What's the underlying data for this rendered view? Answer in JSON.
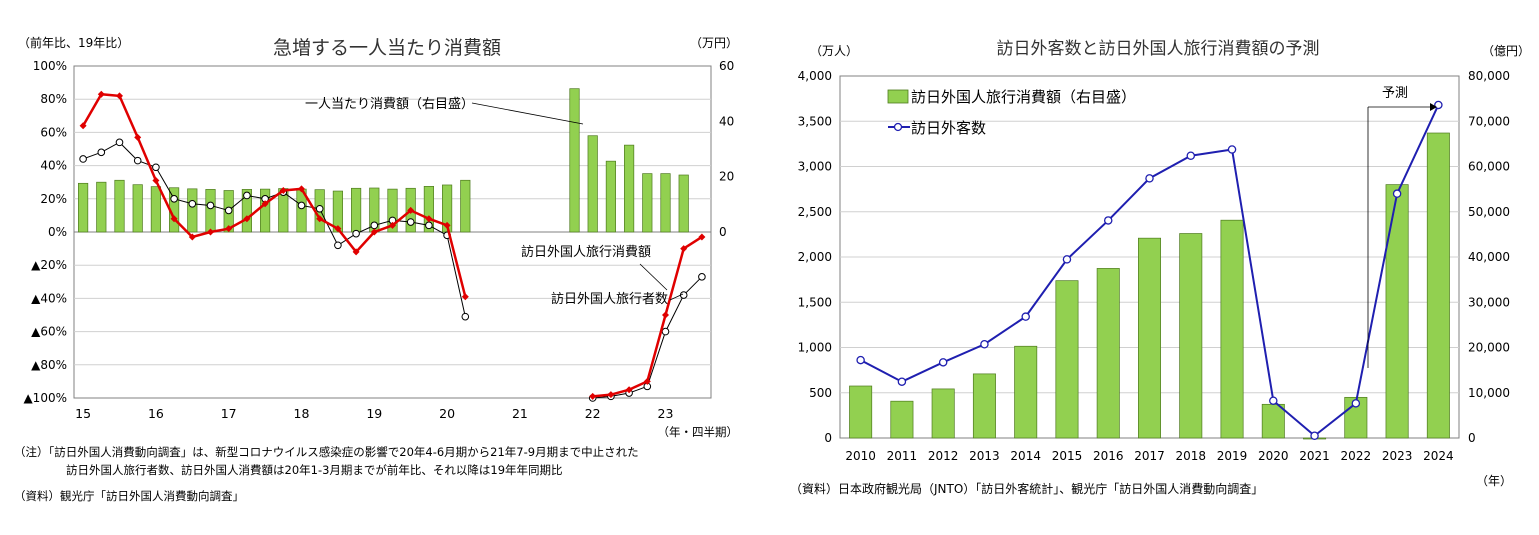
{
  "left_chart": {
    "title": "急増する一人当たり消費額",
    "left_axis_unit": "（前年比、19年比）",
    "right_axis_unit": "（万円）",
    "x_unit": "（年・四半期）",
    "left_ticks": [
      "100%",
      "80%",
      "60%",
      "40%",
      "20%",
      "0%",
      "▲20%",
      "▲40%",
      "▲60%",
      "▲80%",
      "▲100%"
    ],
    "right_ticks": [
      "60",
      "40",
      "20",
      "0"
    ],
    "x_ticks": [
      "15",
      "16",
      "17",
      "18",
      "19",
      "20",
      "21",
      "22",
      "23"
    ],
    "annotations": {
      "per_capita": "一人当たり消費額（右目盛）",
      "spending": "訪日外国人旅行消費額",
      "visitors": "訪日外国人旅行者数"
    },
    "note_lines": [
      "（注）「訪日外国人消費動向調査」は、新型コロナウイルス感染症の影響で20年4-6月期から21年7-9月期まで中止された",
      "訪日外国人旅行者数、訪日外国人消費額は20年1-3月期までが前年比、それ以降は19年年同期比"
    ],
    "source": "（資料）観光庁「訪日外国人消費動向調査」"
  },
  "right_chart": {
    "title": "訪日外客数と訪日外国人旅行消費額の予測",
    "left_axis_unit": "（万人）",
    "right_axis_unit": "（億円）",
    "x_unit": "（年）",
    "left_ticks": [
      "4,000",
      "3,500",
      "3,000",
      "2,500",
      "2,000",
      "1,500",
      "1,000",
      "500",
      "0"
    ],
    "right_ticks": [
      "80,000",
      "70,000",
      "60,000",
      "50,000",
      "40,000",
      "30,000",
      "20,000",
      "10,000",
      "0"
    ],
    "legend": {
      "bars": "訪日外国人旅行消費額（右目盛）",
      "line": "訪日外客数"
    },
    "forecast_label": "予測",
    "source": "（資料）日本政府観光局（JNTO）「訪日外客統計」、観光庁「訪日外国人消費動向調査」"
  },
  "colors": {
    "bar_fill": "#92D050",
    "bar_edge": "#4E7A1E",
    "spending_line": "#E00000",
    "visitors_line": "#000000",
    "right_line": "#1F1FB0",
    "grid": "#D0D0D0"
  },
  "chart_data": [
    {
      "type": "bar+line",
      "title": "急増する一人当たり消費額",
      "x_labels": [
        "15Q1",
        "15Q2",
        "15Q3",
        "15Q4",
        "16Q1",
        "16Q2",
        "16Q3",
        "16Q4",
        "17Q1",
        "17Q2",
        "17Q3",
        "17Q4",
        "18Q1",
        "18Q2",
        "18Q3",
        "18Q4",
        "19Q1",
        "19Q2",
        "19Q3",
        "19Q4",
        "20Q1",
        "20Q2",
        "20Q3",
        "20Q4",
        "21Q1",
        "21Q2",
        "21Q3",
        "21Q4",
        "22Q1",
        "22Q2",
        "22Q3",
        "22Q4",
        "23Q1",
        "23Q2",
        "23Q3"
      ],
      "ylim_left": [
        -100,
        100
      ],
      "ylim_right": [
        -60,
        60
      ],
      "grid": true,
      "series": [
        {
          "name": "一人当たり消費額（右目盛）",
          "kind": "bar",
          "axis": "right",
          "values": [
            17.6,
            18.0,
            18.7,
            17.1,
            16.4,
            16.0,
            15.6,
            15.4,
            15.0,
            15.4,
            15.5,
            15.7,
            15.5,
            15.3,
            14.8,
            15.8,
            15.9,
            15.5,
            15.8,
            16.5,
            17.0,
            18.7,
            null,
            null,
            null,
            null,
            null,
            51.8,
            34.8,
            25.6,
            31.4,
            21.1,
            21.1,
            20.6
          ]
        },
        {
          "name": "訪日外国人旅行消費額",
          "kind": "line",
          "axis": "left",
          "values": [
            64,
            83,
            82,
            57,
            31,
            8,
            -3,
            0,
            2,
            8,
            17,
            25,
            26,
            8,
            2,
            -12,
            0,
            4,
            13,
            8,
            4,
            -39,
            null,
            null,
            null,
            null,
            null,
            null,
            -99,
            -98,
            -95,
            -90,
            -50,
            -10,
            -3
          ]
        },
        {
          "name": "訪日外国人旅行者数",
          "kind": "line",
          "axis": "left",
          "values": [
            44,
            48,
            54,
            43,
            39,
            20,
            17,
            16,
            13,
            22,
            20,
            24,
            16,
            14,
            -8,
            -1,
            4,
            7,
            6,
            4,
            -2,
            -51,
            null,
            null,
            null,
            null,
            null,
            null,
            -100,
            -99,
            -97,
            -93,
            -60,
            -38,
            -27
          ]
        }
      ]
    },
    {
      "type": "bar+line",
      "title": "訪日外客数と訪日外国人旅行消費額の予測",
      "categories": [
        "2010",
        "2011",
        "2012",
        "2013",
        "2014",
        "2015",
        "2016",
        "2017",
        "2018",
        "2019",
        "2020",
        "2021",
        "2022",
        "2023",
        "2024"
      ],
      "ylim_left": [
        0,
        4000
      ],
      "ylim_right": [
        0,
        80000
      ],
      "grid": true,
      "legend_position": "top-left",
      "series": [
        {
          "name": "訪日外国人旅行消費額（右目盛）",
          "kind": "bar",
          "axis": "right",
          "values": [
            11490,
            8135,
            10846,
            14167,
            20278,
            34771,
            37476,
            44162,
            45189,
            48135,
            7446,
            0,
            8987,
            56000,
            67400
          ]
        },
        {
          "name": "訪日外客数",
          "kind": "line",
          "axis": "left",
          "values": [
            861,
            622,
            836,
            1036,
            1341,
            1974,
            2404,
            2869,
            3119,
            3188,
            412,
            25,
            383,
            2700,
            3680
          ]
        }
      ]
    }
  ]
}
